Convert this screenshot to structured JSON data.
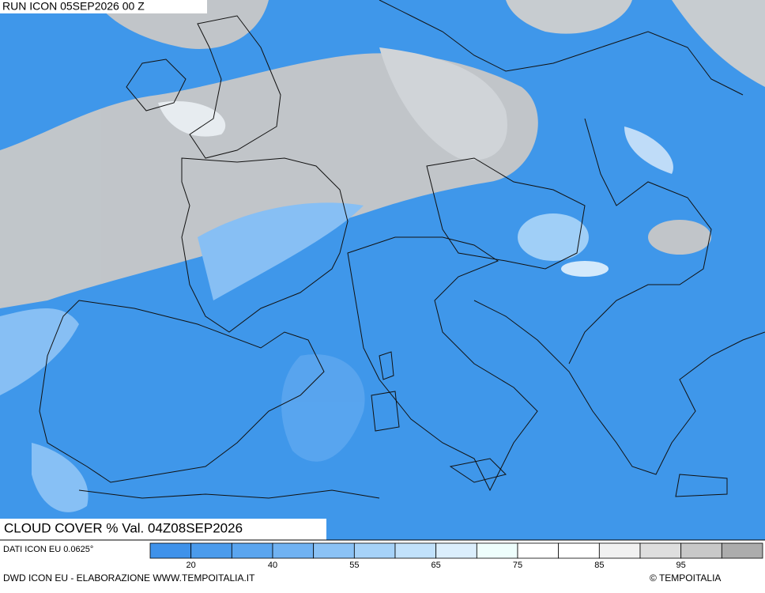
{
  "header": {
    "run": "RUN ICON 05SEP2026 00 Z"
  },
  "map": {
    "variable_label": "CLOUD COVER % Val. 04Z08SEP2026"
  },
  "legend": {
    "colors": [
      "#3f92ea",
      "#4b9bec",
      "#5aa5ef",
      "#70b2f2",
      "#8bc2f5",
      "#a6d2f8",
      "#c1e1fb",
      "#dbeefc",
      "#eefefc",
      "#ffffff",
      "#ffffff",
      "#f1f1f1",
      "#dedede",
      "#c8c8c8",
      "#acacac"
    ],
    "ticks": [
      20,
      40,
      55,
      65,
      75,
      85,
      95
    ]
  },
  "footer": {
    "source": "DATI ICON EU 0.0625°",
    "credit": "DWD ICON EU - ELABORAZIONE WWW.TEMPOITALIA.IT",
    "copyright": "© TEMPOITALIA"
  }
}
